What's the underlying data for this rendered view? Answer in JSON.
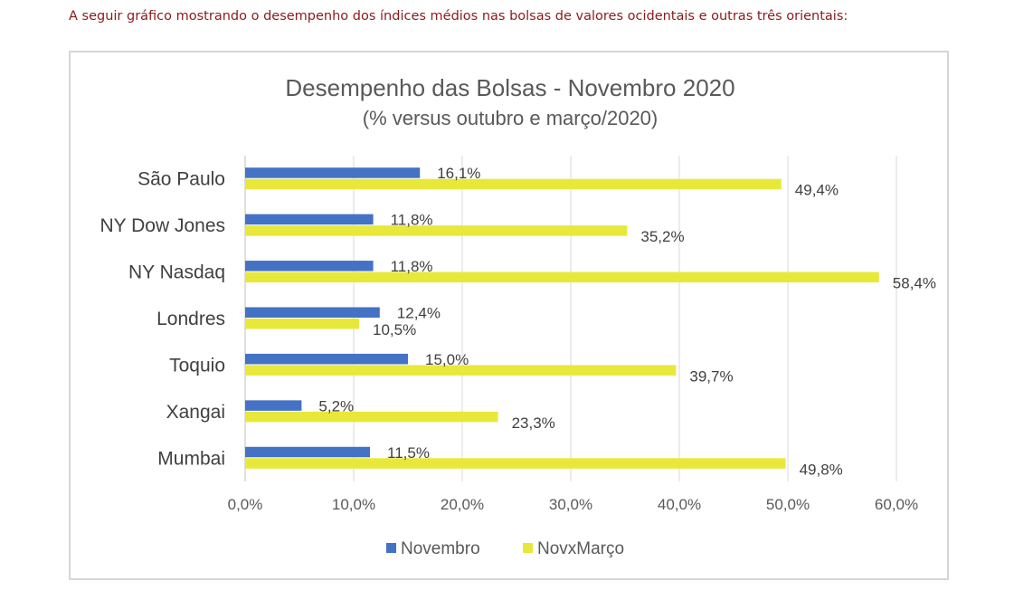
{
  "intro_text": "A seguir gráfico mostrando o desempenho dos índices médios nas bolsas de valores ocidentais e outras três orientais:",
  "chart_data": {
    "type": "bar",
    "orientation": "horizontal",
    "title": "Desempenho das Bolsas - Novembro 2020",
    "subtitle": "(% versus outubro e março/2020)",
    "categories": [
      "São Paulo",
      "NY Dow Jones",
      "NY Nasdaq",
      "Londres",
      "Toquio",
      "Xangai",
      "Mumbai"
    ],
    "series": [
      {
        "name": "Novembro",
        "color": "#4472c4",
        "values": [
          16.1,
          11.8,
          11.8,
          12.4,
          15.0,
          5.2,
          11.5
        ],
        "labels": [
          "16,1%",
          "11,8%",
          "11,8%",
          "12,4%",
          "15,0%",
          "5,2%",
          "11,5%"
        ]
      },
      {
        "name": "NovxMarço",
        "color": "#e8e83a",
        "values": [
          49.4,
          35.2,
          58.4,
          10.5,
          39.7,
          23.3,
          49.8
        ],
        "labels": [
          "49,4%",
          "35,2%",
          "58,4%",
          "10,5%",
          "39,7%",
          "23,3%",
          "49,8%"
        ]
      }
    ],
    "xlim": [
      0,
      60
    ],
    "xticks": [
      0,
      10,
      20,
      30,
      40,
      50,
      60
    ],
    "xtick_labels": [
      "0,0%",
      "10,0%",
      "20,0%",
      "30,0%",
      "40,0%",
      "50,0%",
      "60,0%"
    ],
    "grid": "vertical",
    "legend": "bottom"
  }
}
